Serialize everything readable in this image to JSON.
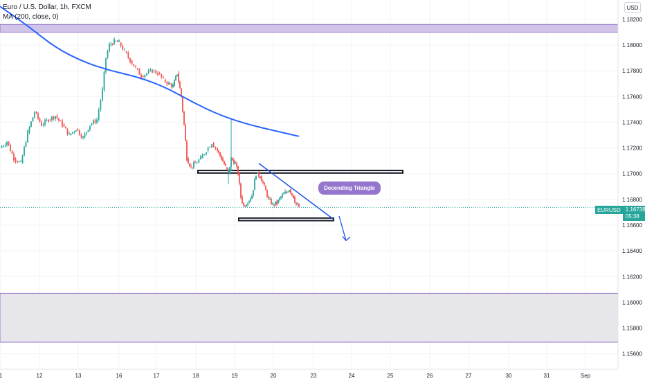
{
  "legend": {
    "symbol_line": "Euro / U.S. Dollar, 1h, FXCM",
    "indicator_line": "MA (200, close, 0)"
  },
  "currency_button": "USD",
  "last_price": {
    "symbol": "EURUSD",
    "price": "1.16738",
    "countdown": "05:38"
  },
  "annotation": "Decending Triangle",
  "colors": {
    "up": "#26a69a",
    "down": "#ef5350",
    "ma": "#2962ff",
    "zone": "#9575cd",
    "zone_fill": "#d1c4e9",
    "lower_zone_fill": "#e6e6eb",
    "arrow": "#1e53e5"
  },
  "chart_data": {
    "type": "candlestick",
    "title": "Euro / U.S. Dollar, 1h, FXCM",
    "ylim": [
      1.1548,
      1.1835
    ],
    "y_ticks": [
      "1.18200",
      "1.18000",
      "1.17800",
      "1.17600",
      "1.17400",
      "1.17200",
      "1.17000",
      "1.16800",
      "1.16600",
      "1.16400",
      "1.16200",
      "1.16000",
      "1.15800",
      "1.15600"
    ],
    "x_ticks": [
      "1",
      "12",
      "13",
      "16",
      "17",
      "18",
      "19",
      "20",
      "23",
      "24",
      "25",
      "26",
      "27",
      "30",
      "31",
      "Sep"
    ],
    "price_path": [
      [
        0,
        1.172
      ],
      [
        10,
        1.1725
      ],
      [
        20,
        1.1712
      ],
      [
        30,
        1.1708
      ],
      [
        40,
        1.1732
      ],
      [
        50,
        1.1748
      ],
      [
        60,
        1.1738
      ],
      [
        70,
        1.1742
      ],
      [
        80,
        1.1745
      ],
      [
        90,
        1.1738
      ],
      [
        100,
        1.173
      ],
      [
        110,
        1.1735
      ],
      [
        120,
        1.1728
      ],
      [
        130,
        1.1738
      ],
      [
        140,
        1.1742
      ],
      [
        148,
        1.1765
      ],
      [
        153,
        1.179
      ],
      [
        158,
        1.18
      ],
      [
        165,
        1.1803
      ],
      [
        172,
        1.1802
      ],
      [
        180,
        1.1795
      ],
      [
        188,
        1.1788
      ],
      [
        196,
        1.1782
      ],
      [
        204,
        1.1776
      ],
      [
        212,
        1.1778
      ],
      [
        220,
        1.178
      ],
      [
        228,
        1.1778
      ],
      [
        236,
        1.1773
      ],
      [
        244,
        1.177
      ],
      [
        250,
        1.1768
      ],
      [
        256,
        1.1778
      ],
      [
        262,
        1.176
      ],
      [
        266,
        1.1738
      ],
      [
        270,
        1.1712
      ],
      [
        276,
        1.1705
      ],
      [
        282,
        1.1708
      ],
      [
        290,
        1.1712
      ],
      [
        298,
        1.1718
      ],
      [
        306,
        1.1724
      ],
      [
        314,
        1.1718
      ],
      [
        320,
        1.1712
      ],
      [
        326,
        1.1705
      ],
      [
        330,
        1.17
      ],
      [
        334,
        1.1712
      ],
      [
        340,
        1.1708
      ],
      [
        344,
        1.17
      ],
      [
        348,
        1.1682
      ],
      [
        352,
        1.1675
      ],
      [
        358,
        1.1678
      ],
      [
        364,
        1.1683
      ],
      [
        370,
        1.17
      ],
      [
        376,
        1.1698
      ],
      [
        382,
        1.169
      ],
      [
        388,
        1.168
      ],
      [
        394,
        1.1676
      ],
      [
        400,
        1.1677
      ],
      [
        406,
        1.1682
      ],
      [
        412,
        1.1685
      ],
      [
        418,
        1.1688
      ],
      [
        424,
        1.1682
      ],
      [
        428,
        1.1676
      ],
      [
        432,
        1.1674
      ]
    ],
    "wicks": [
      [
        334,
        1.1743,
        1.1702
      ],
      [
        330,
        1.1704,
        1.1692
      ]
    ],
    "moving_average": [
      [
        0,
        1.183
      ],
      [
        40,
        1.1815
      ],
      [
        80,
        1.1798
      ],
      [
        120,
        1.1787
      ],
      [
        160,
        1.178
      ],
      [
        200,
        1.1775
      ],
      [
        240,
        1.1767
      ],
      [
        280,
        1.1755
      ],
      [
        320,
        1.1745
      ],
      [
        360,
        1.1738
      ],
      [
        400,
        1.1733
      ],
      [
        432,
        1.1729
      ]
    ],
    "zones": [
      {
        "y1": 1.1816,
        "y2": 1.181,
        "x1": 0,
        "x2": 893,
        "style": "purple"
      },
      {
        "y1": 1.17025,
        "y2": 1.17005,
        "x1": 286,
        "x2": 582,
        "style": "rect"
      },
      {
        "y1": 1.16655,
        "y2": 1.16635,
        "x1": 345,
        "x2": 482,
        "style": "rect"
      },
      {
        "y1": 1.1607,
        "y2": 1.1569,
        "x1": 0,
        "x2": 893,
        "style": "gray"
      }
    ],
    "trendline": [
      [
        374,
        1.1708
      ],
      [
        482,
        1.16645
      ]
    ],
    "arrow": [
      [
        490,
        1.1667
      ],
      [
        500,
        1.1648
      ]
    ]
  }
}
